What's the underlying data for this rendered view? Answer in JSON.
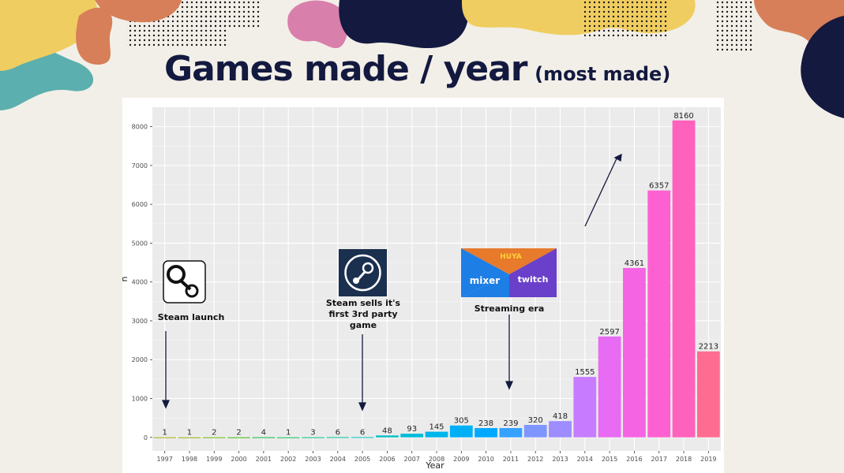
{
  "title": "Games made / year",
  "subtitle": "(most made)",
  "annotations": {
    "steam_launch": "Steam launch",
    "steam_sells": "Steam sells it's first 3rd party game",
    "streaming": "Streaming era"
  },
  "logos": {
    "huya": "HUYA",
    "mixer": "mixer",
    "twitch": "twitch"
  },
  "colors": {
    "background": "#f2efe8",
    "title": "#13193f",
    "panel": "#ebebeb"
  },
  "chart_data": {
    "type": "bar",
    "xlabel": "Year",
    "ylabel": "n",
    "ylim": [
      0,
      8500
    ],
    "yticks": [
      0,
      1000,
      2000,
      3000,
      4000,
      5000,
      6000,
      7000,
      8000
    ],
    "grid": true,
    "categories": [
      "1997",
      "1998",
      "1999",
      "2000",
      "2001",
      "2002",
      "2003",
      "2004",
      "2005",
      "2006",
      "2007",
      "2008",
      "2009",
      "2010",
      "2011",
      "2012",
      "2013",
      "2014",
      "2015",
      "2016",
      "2017",
      "2018",
      "2019"
    ],
    "values": [
      1,
      1,
      2,
      2,
      4,
      1,
      3,
      6,
      6,
      48,
      93,
      145,
      305,
      238,
      239,
      320,
      418,
      1555,
      2597,
      4361,
      6357,
      8160,
      2213
    ],
    "colors": [
      "#a3a500",
      "#8fab00",
      "#6bb100",
      "#39b600",
      "#00ba38",
      "#00bc56",
      "#00bf7d",
      "#00c09a",
      "#00c0b6",
      "#00bfc4",
      "#00bcd8",
      "#00b6eb",
      "#00b0f6",
      "#00a9ff",
      "#35a2ff",
      "#7f96ff",
      "#9f8cff",
      "#c77cff",
      "#e76bf3",
      "#f564e3",
      "#fd61d1",
      "#ff62bc",
      "#ff6c91"
    ]
  }
}
